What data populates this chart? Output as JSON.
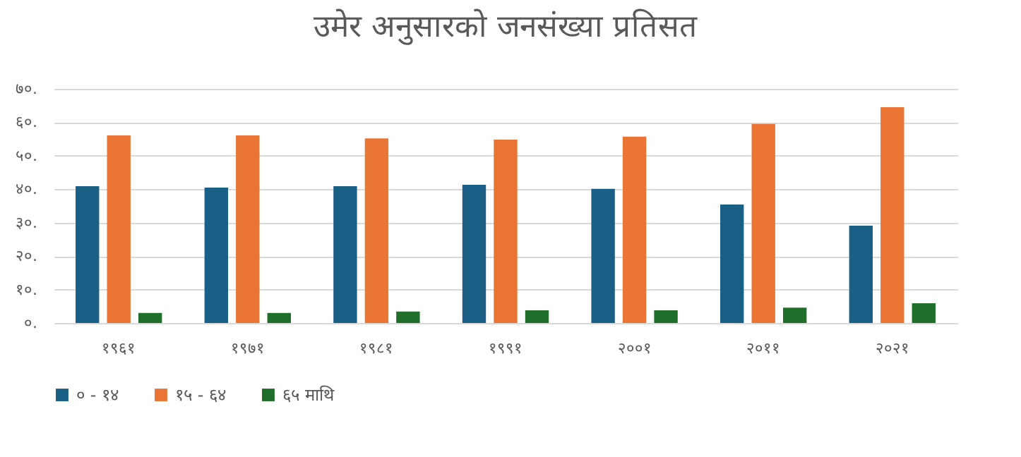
{
  "chart_data": {
    "type": "bar",
    "title": "उमेर अनुसारको  जनसंख्या प्रतिसत",
    "categories": [
      "१९६१",
      "१९७१",
      "१९८१",
      "१९९१",
      "२००१",
      "२०११",
      "२०२१"
    ],
    "series": [
      {
        "name": "० - १४",
        "color": "#1a5f85",
        "values": [
          40.9,
          40.5,
          40.9,
          41.3,
          40.1,
          35.4,
          29.1
        ]
      },
      {
        "name": "१५ - ६४",
        "color": "#e97434",
        "values": [
          56.1,
          56.1,
          55.2,
          54.8,
          55.7,
          59.5,
          64.5
        ]
      },
      {
        "name": "६५ माथि",
        "color": "#1f6e2a",
        "values": [
          3.0,
          3.0,
          3.4,
          3.8,
          3.8,
          4.6,
          5.9
        ]
      }
    ],
    "ylim": [
      0,
      70
    ],
    "yticks": [
      {
        "value": 0,
        "label": "०."
      },
      {
        "value": 10,
        "label": "१०."
      },
      {
        "value": 20,
        "label": "२०."
      },
      {
        "value": 30,
        "label": "३०."
      },
      {
        "value": 40,
        "label": "४०."
      },
      {
        "value": 50,
        "label": "५०."
      },
      {
        "value": 60,
        "label": "६०."
      },
      {
        "value": 70,
        "label": "७०."
      }
    ],
    "grid": "y",
    "legend": "bottom"
  }
}
